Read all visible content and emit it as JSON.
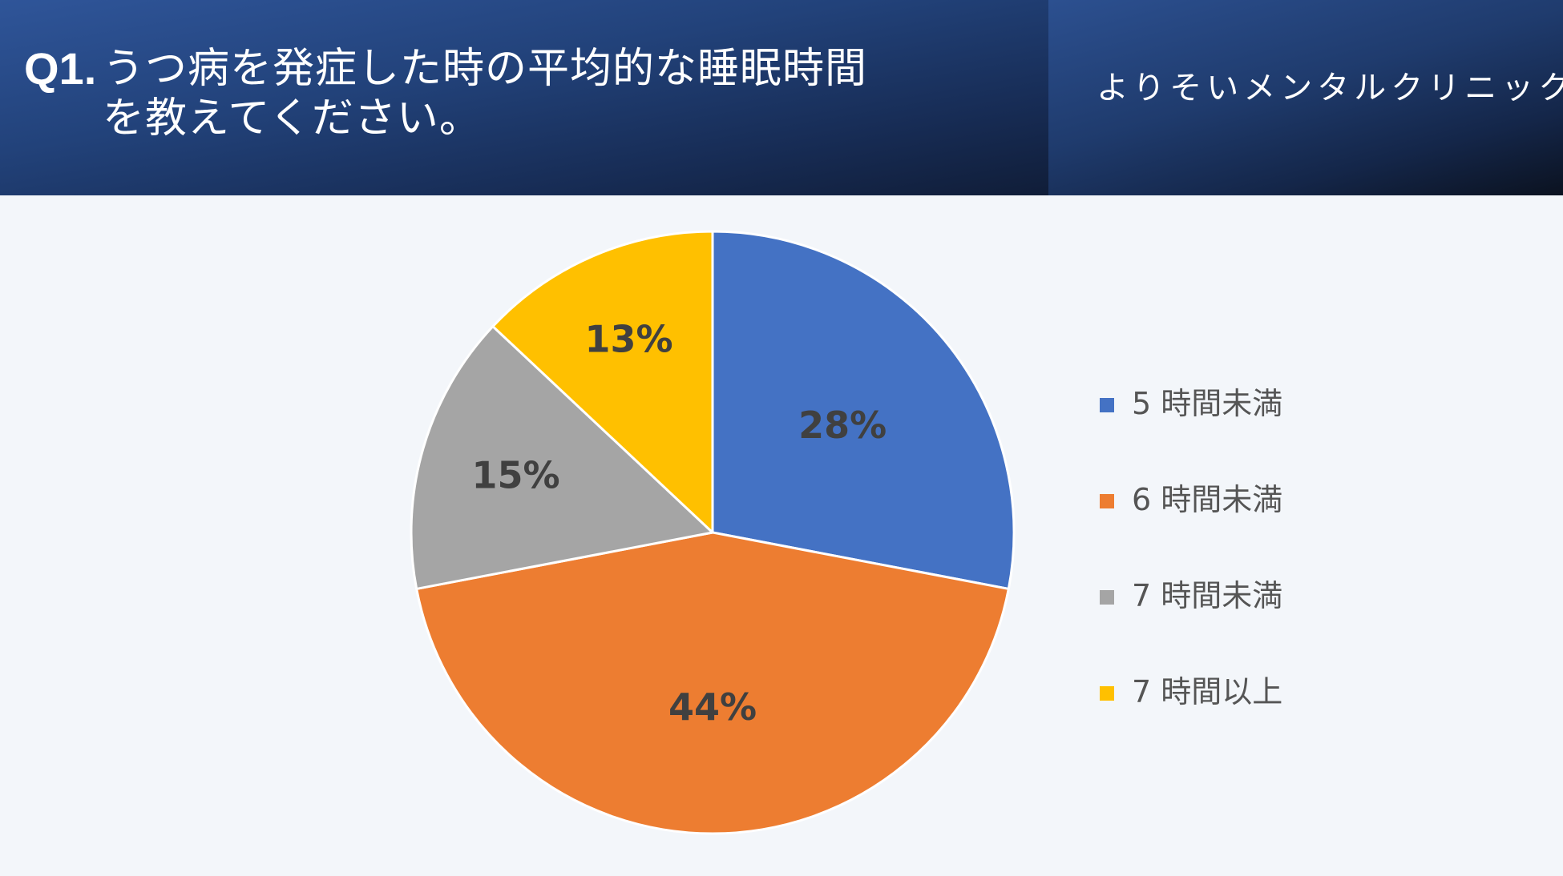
{
  "header": {
    "question_number": "Q1.",
    "question_line1": "うつ病を発症した時の平均的な睡眠時間",
    "question_line2": "を教えてください。",
    "clinic_name": "よりそいメンタルクリニック"
  },
  "chart_data": {
    "type": "pie",
    "title": "",
    "categories": [
      "5時間未満",
      "6時間未満",
      "7時間未満",
      "7時間以上"
    ],
    "values": [
      28,
      44,
      15,
      13
    ],
    "data_labels": [
      "28%",
      "44%",
      "15%",
      "13%"
    ],
    "colors": [
      "#4472c4",
      "#ed7d31",
      "#a5a5a5",
      "#ffc000"
    ],
    "legend_labels": [
      "5 時間未満",
      "6 時間未満",
      "7 時間未満",
      "7 時間以上"
    ],
    "legend_position": "right",
    "start_angle": "12 o'clock",
    "direction": "clockwise"
  }
}
